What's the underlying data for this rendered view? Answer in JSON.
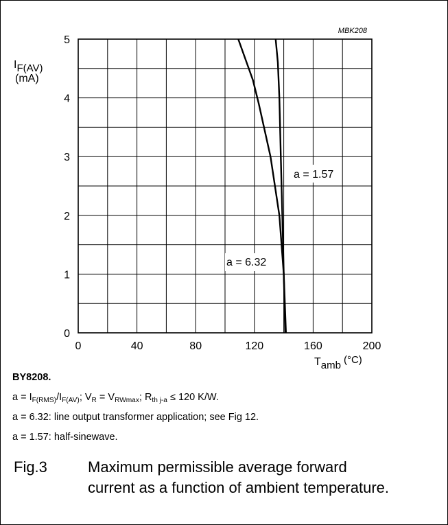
{
  "chart_data": {
    "type": "line",
    "code": "MBK208",
    "xlabel": "T",
    "xlabel_sub": "amb",
    "xunit": "(°C)",
    "ylabel": "I",
    "ylabel_sub": "F(AV)",
    "yunit": "(mA)",
    "xlim": [
      0,
      200
    ],
    "ylim": [
      0,
      5
    ],
    "xticks": [
      0,
      40,
      80,
      120,
      160,
      200
    ],
    "yticks": [
      0,
      1,
      2,
      3,
      4,
      5
    ],
    "grid": true,
    "series": [
      {
        "name": "a = 1.57",
        "x": [
          141,
          140,
          139,
          138,
          137,
          136,
          134.5
        ],
        "y": [
          0,
          1,
          2,
          3,
          4,
          4.6,
          5
        ]
      },
      {
        "name": "a = 6.32",
        "x": [
          141.5,
          140,
          137,
          131,
          123,
          119,
          109
        ],
        "y": [
          0,
          1,
          2,
          3,
          3.9,
          4.3,
          5
        ]
      }
    ]
  },
  "notes": {
    "device": "BY8208.",
    "def": {
      "p1": "a = I",
      "s1": "F(RMS)",
      "p2": "/I",
      "s2": "F(AV)",
      "p3": "; V",
      "s3": "R",
      "p4": " = V",
      "s4": "RWmax",
      "p5": "; R",
      "s5": "th j-a",
      "p6": " ≤ 120 K/W."
    },
    "line2": "a = 6.32: line output transformer application; see Fig 12.",
    "line3": "a = 1.57: half-sinewave."
  },
  "caption": {
    "fig": "Fig.3",
    "line1": "Maximum permissible average forward",
    "line2": "current as a function of ambient temperature."
  }
}
